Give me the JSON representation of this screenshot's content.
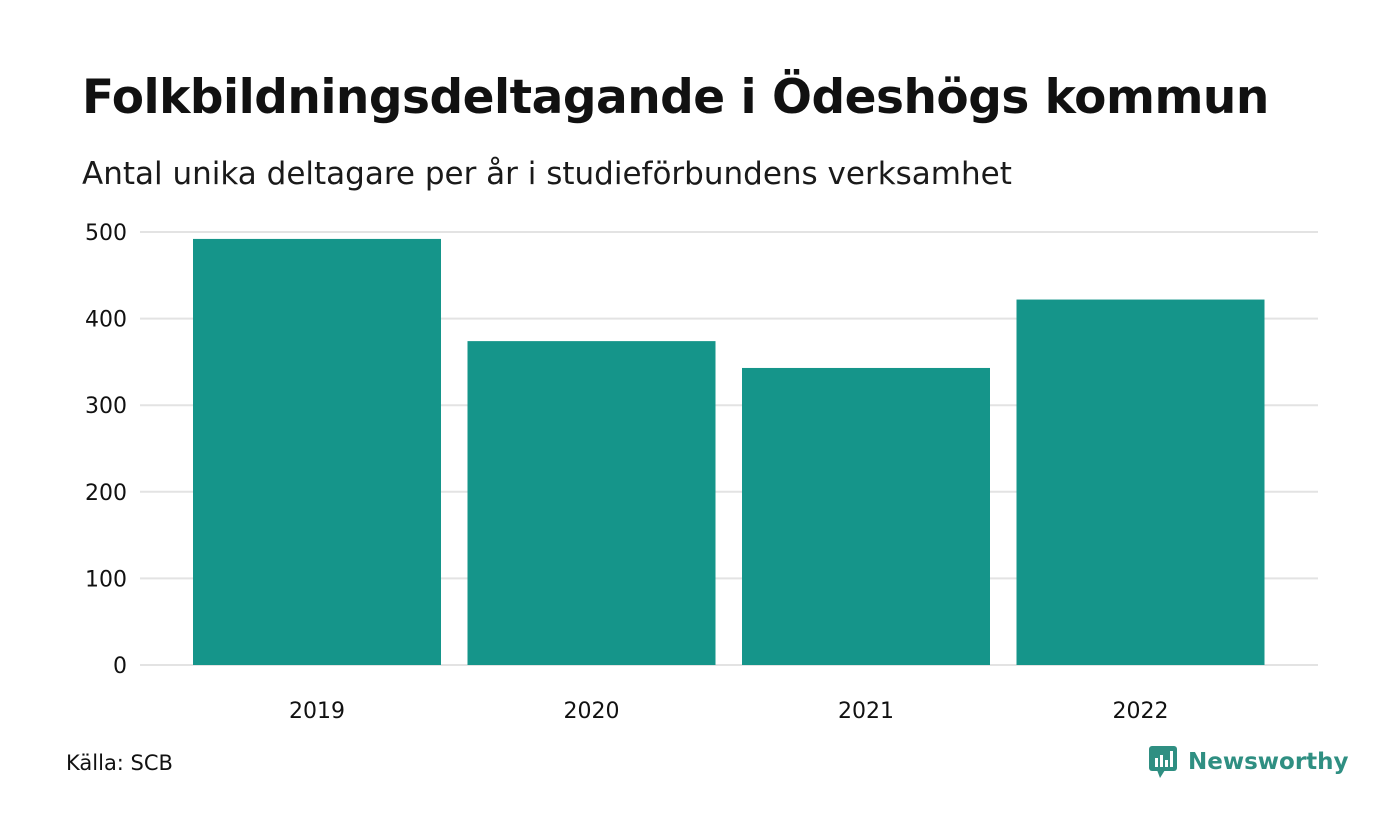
{
  "header": {
    "title": "Folkbildningsdeltagande i Ödeshögs kommun",
    "subtitle": "Antal unika deltagare per år i studieförbundens verksamhet"
  },
  "footer": {
    "source": "Källa: SCB",
    "brand": "Newsworthy",
    "brand_icon": "newsworthy-logo-icon"
  },
  "colors": {
    "bar": "#15958A",
    "grid": "#E3E3E3",
    "brand": "#2F8F82"
  },
  "chart_data": {
    "type": "bar",
    "categories": [
      "2019",
      "2020",
      "2021",
      "2022"
    ],
    "values": [
      492,
      374,
      343,
      422
    ],
    "ylim": [
      0,
      500
    ],
    "yticks": [
      0,
      100,
      200,
      300,
      400,
      500
    ],
    "grid": true,
    "legend": "none"
  }
}
